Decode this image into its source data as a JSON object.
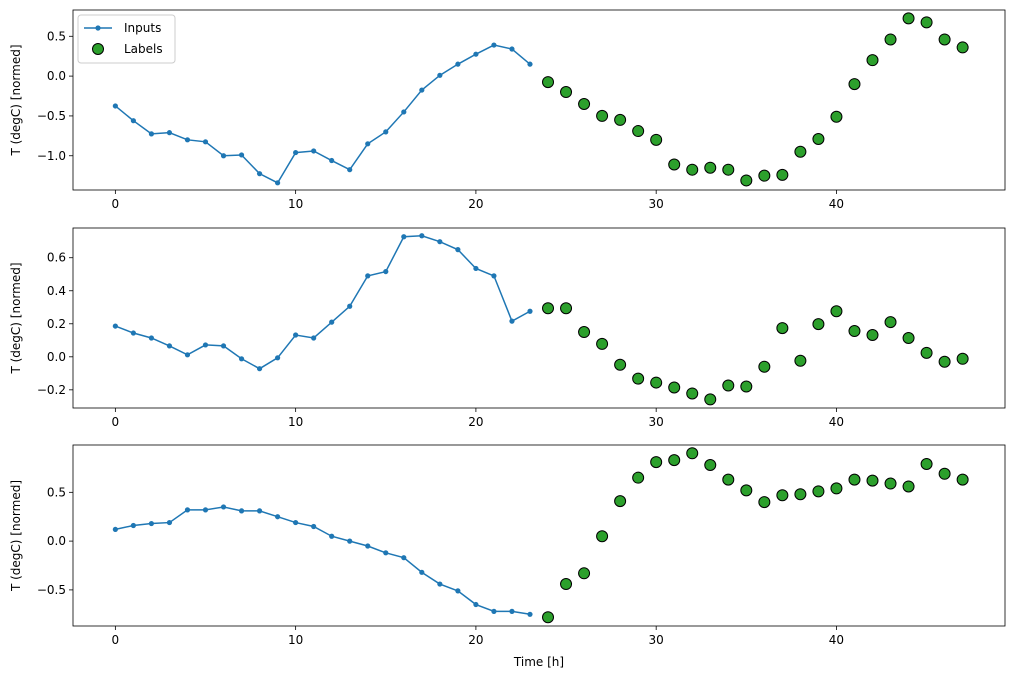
{
  "chart_data": [
    {
      "type": "line",
      "ylabel": "T (degC) [normed]",
      "xlabel": "",
      "xlim": [
        -2.35,
        49.35
      ],
      "ylim": [
        -1.43,
        0.83
      ],
      "xticks": [
        0,
        10,
        20,
        30,
        40
      ],
      "yticks": [
        -1.0,
        -0.5,
        0.0,
        0.5
      ],
      "ytick_labels": [
        "−1.0",
        "−0.5",
        "0.0",
        "0.5"
      ],
      "legend": {
        "placement": "top-left",
        "entries": [
          "Inputs",
          "Labels"
        ]
      },
      "series": [
        {
          "name": "Inputs",
          "kind": "line-marker",
          "color": "#1f77b4",
          "x": [
            0,
            1,
            2,
            3,
            4,
            5,
            6,
            7,
            8,
            9,
            10,
            11,
            12,
            13,
            14,
            15,
            16,
            17,
            18,
            19,
            20,
            21,
            22,
            23
          ],
          "y": [
            -0.375,
            -0.56,
            -0.725,
            -0.71,
            -0.8,
            -0.825,
            -1.0,
            -0.99,
            -1.225,
            -1.34,
            -0.96,
            -0.94,
            -1.06,
            -1.175,
            -0.85,
            -0.7,
            -0.45,
            -0.175,
            0.01,
            0.15,
            0.275,
            0.39,
            0.34,
            0.15
          ]
        },
        {
          "name": "Labels",
          "kind": "scatter",
          "color": "#2ca02c",
          "x": [
            24,
            25,
            26,
            27,
            28,
            29,
            30,
            31,
            32,
            33,
            34,
            35,
            36,
            37,
            38,
            39,
            40,
            41,
            42,
            43,
            44,
            45,
            46,
            47
          ],
          "y": [
            -0.075,
            -0.2,
            -0.35,
            -0.5,
            -0.55,
            -0.69,
            -0.8,
            -1.11,
            -1.175,
            -1.15,
            -1.175,
            -1.31,
            -1.25,
            -1.24,
            -0.95,
            -0.79,
            -0.51,
            -0.1,
            0.2,
            0.46,
            0.725,
            0.675,
            0.46,
            0.36
          ]
        }
      ]
    },
    {
      "type": "line",
      "ylabel": "T (degC) [normed]",
      "xlabel": "",
      "xlim": [
        -2.35,
        49.35
      ],
      "ylim": [
        -0.31,
        0.78
      ],
      "xticks": [
        0,
        10,
        20,
        30,
        40
      ],
      "yticks": [
        -0.2,
        0.0,
        0.2,
        0.4,
        0.6
      ],
      "ytick_labels": [
        "−0.2",
        "0.0",
        "0.2",
        "0.4",
        "0.6"
      ],
      "series": [
        {
          "name": "Inputs",
          "kind": "line-marker",
          "color": "#1f77b4",
          "x": [
            0,
            1,
            2,
            3,
            4,
            5,
            6,
            7,
            8,
            9,
            10,
            11,
            12,
            13,
            14,
            15,
            16,
            17,
            18,
            19,
            20,
            21,
            22,
            23
          ],
          "y": [
            0.186,
            0.144,
            0.114,
            0.066,
            0.012,
            0.072,
            0.066,
            -0.012,
            -0.072,
            -0.006,
            0.132,
            0.114,
            0.21,
            0.306,
            0.49,
            0.516,
            0.727,
            0.733,
            0.697,
            0.649,
            0.535,
            0.49,
            0.216,
            0.276
          ]
        },
        {
          "name": "Labels",
          "kind": "scatter",
          "color": "#2ca02c",
          "x": [
            24,
            25,
            26,
            27,
            28,
            29,
            30,
            31,
            32,
            33,
            34,
            35,
            36,
            37,
            38,
            39,
            40,
            41,
            42,
            43,
            44,
            45,
            46,
            47
          ],
          "y": [
            0.294,
            0.294,
            0.15,
            0.078,
            -0.048,
            -0.132,
            -0.156,
            -0.186,
            -0.222,
            -0.258,
            -0.174,
            -0.18,
            -0.06,
            0.174,
            -0.024,
            0.198,
            0.276,
            0.156,
            0.132,
            0.21,
            0.114,
            0.024,
            -0.03,
            -0.012
          ]
        }
      ]
    },
    {
      "type": "line",
      "ylabel": "T (degC) [normed]",
      "xlabel": "Time [h]",
      "xlim": [
        -2.35,
        49.35
      ],
      "ylim": [
        -0.87,
        0.985
      ],
      "xticks": [
        0,
        10,
        20,
        30,
        40
      ],
      "yticks": [
        -0.5,
        0.0,
        0.5
      ],
      "ytick_labels": [
        "−0.5",
        "0.0",
        "0.5"
      ],
      "series": [
        {
          "name": "Inputs",
          "kind": "line-marker",
          "color": "#1f77b4",
          "x": [
            0,
            1,
            2,
            3,
            4,
            5,
            6,
            7,
            8,
            9,
            10,
            11,
            12,
            13,
            14,
            15,
            16,
            17,
            18,
            19,
            20,
            21,
            22,
            23
          ],
          "y": [
            0.12,
            0.16,
            0.18,
            0.19,
            0.32,
            0.32,
            0.35,
            0.31,
            0.31,
            0.25,
            0.19,
            0.15,
            0.05,
            0.0,
            -0.05,
            -0.12,
            -0.17,
            -0.32,
            -0.44,
            -0.51,
            -0.65,
            -0.72,
            -0.72,
            -0.75
          ]
        },
        {
          "name": "Labels",
          "kind": "scatter",
          "color": "#2ca02c",
          "x": [
            24,
            25,
            26,
            27,
            28,
            29,
            30,
            31,
            32,
            33,
            34,
            35,
            36,
            37,
            38,
            39,
            40,
            41,
            42,
            43,
            44,
            45,
            46,
            47
          ],
          "y": [
            -0.78,
            -0.44,
            -0.33,
            0.05,
            0.41,
            0.65,
            0.81,
            0.83,
            0.9,
            0.78,
            0.63,
            0.52,
            0.4,
            0.47,
            0.48,
            0.51,
            0.54,
            0.63,
            0.62,
            0.59,
            0.56,
            0.79,
            0.69,
            0.63
          ]
        }
      ]
    }
  ]
}
